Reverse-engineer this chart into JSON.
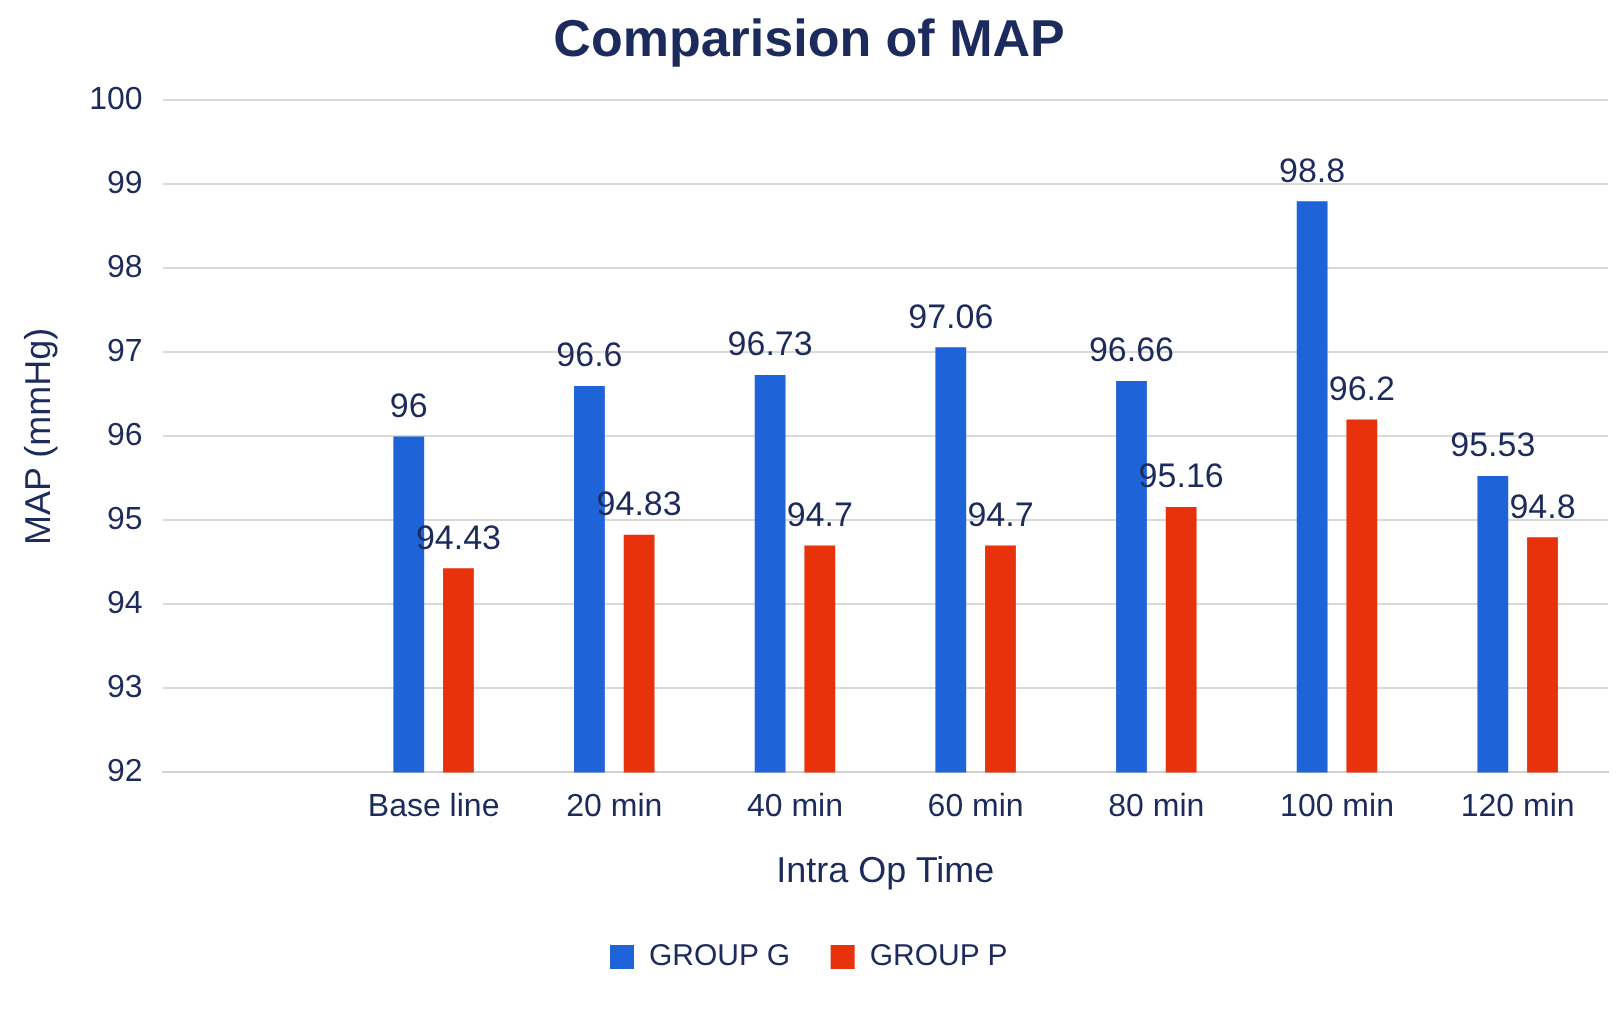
{
  "chart_data": {
    "type": "bar",
    "title": "Comparision of MAP",
    "xlabel": "Intra Op Time",
    "ylabel": "MAP (mmHg)",
    "categories": [
      null,
      "Base line",
      "20 min",
      "40 min",
      "60 min",
      "80 min",
      "100 min",
      "120 min"
    ],
    "series": [
      {
        "name": "GROUP G",
        "color": "#1f63d8",
        "values": [
          null,
          96,
          96.6,
          96.73,
          97.06,
          96.66,
          98.8,
          95.53
        ]
      },
      {
        "name": "GROUP P",
        "color": "#e8320c",
        "values": [
          null,
          94.43,
          94.83,
          94.7,
          94.7,
          95.16,
          96.2,
          94.8
        ]
      }
    ],
    "ylim": [
      92,
      100
    ],
    "yticks": [
      92,
      93,
      94,
      95,
      96,
      97,
      98,
      99,
      100
    ],
    "grid": "y",
    "legend": "bottom",
    "data_labels": true
  }
}
